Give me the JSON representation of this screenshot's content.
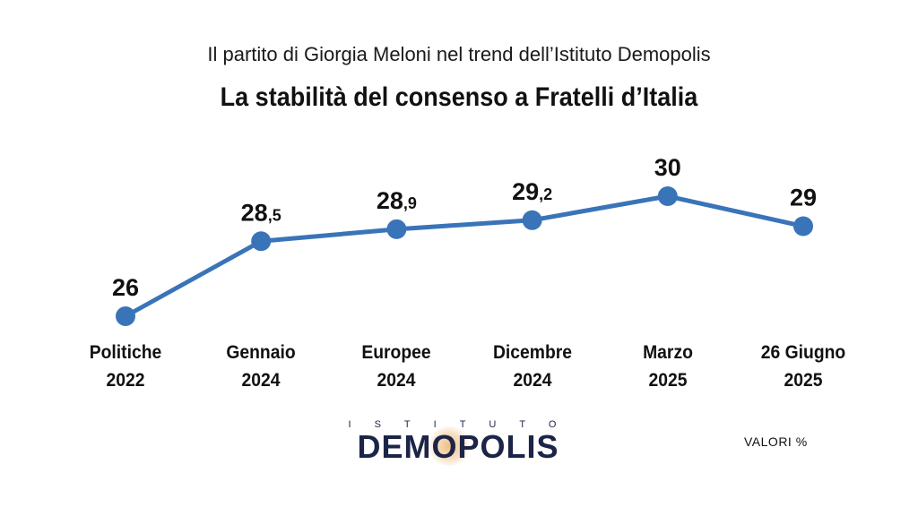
{
  "header": {
    "subtitle": "Il partito di Giorgia Meloni nel trend dell’Istituto Demopolis",
    "title": "La stabilità del consenso a Fratelli d’Italia"
  },
  "chart_data": {
    "type": "line",
    "title": "La stabilità del consenso a Fratelli d’Italia",
    "subtitle": "Il partito di Giorgia Meloni nel trend dell’Istituto Demopolis",
    "categories": [
      [
        "Politiche",
        "2022"
      ],
      [
        "Gennaio",
        "2024"
      ],
      [
        "Europee",
        "2024"
      ],
      [
        "Dicembre",
        "2024"
      ],
      [
        "Marzo",
        "2025"
      ],
      [
        "26 Giugno",
        "2025"
      ]
    ],
    "series": [
      {
        "values": [
          26,
          28.5,
          28.9,
          29.2,
          30,
          29
        ],
        "labels": [
          {
            "int": "26",
            "dec": ""
          },
          {
            "int": "28",
            "dec": ",5"
          },
          {
            "int": "28",
            "dec": ",9"
          },
          {
            "int": "29",
            "dec": ",2"
          },
          {
            "int": "30",
            "dec": ""
          },
          {
            "int": "29",
            "dec": ""
          }
        ]
      }
    ],
    "color": "#3a74b8",
    "grid": false,
    "legend": "none"
  },
  "footer": {
    "logo_small": "ISTITUTO",
    "logo_main": "DEMOPOLIS",
    "units": "VALORI %"
  }
}
